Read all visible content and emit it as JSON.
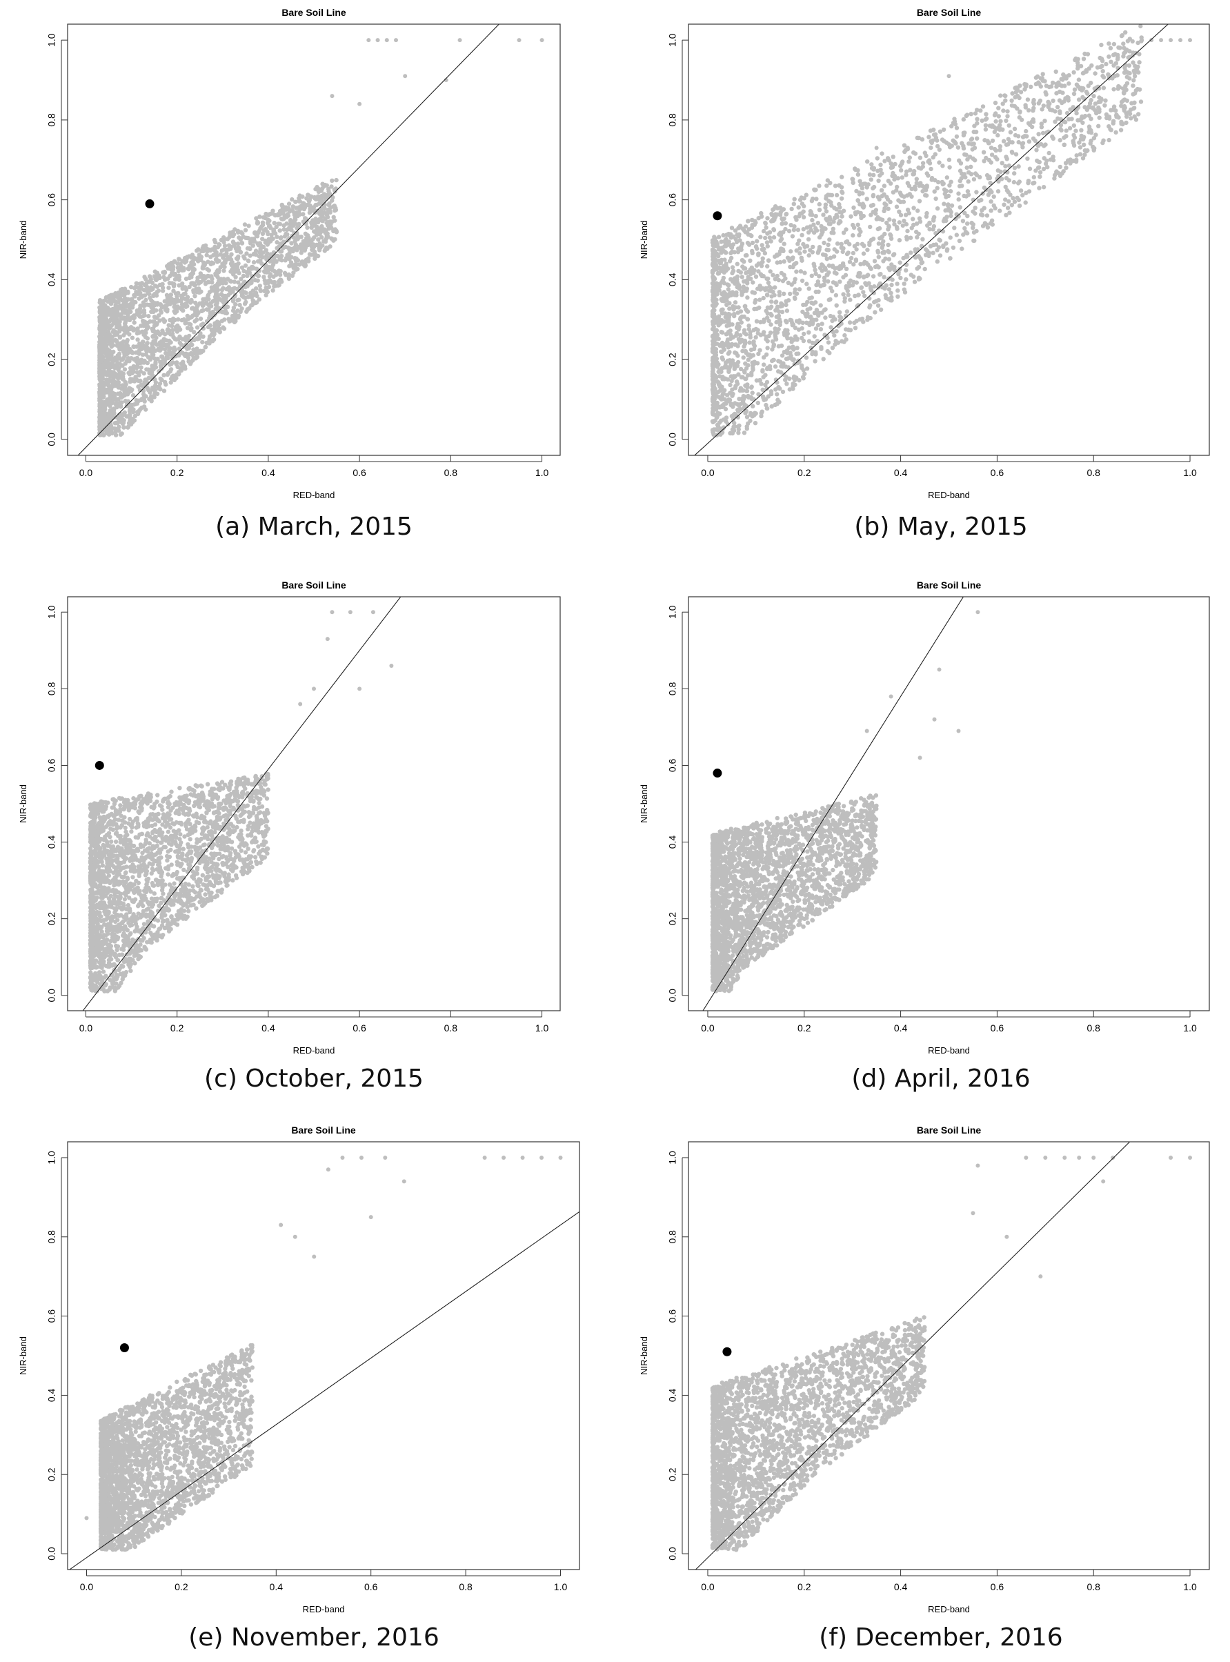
{
  "chart_data": [
    {
      "type": "scatter",
      "title": "Bare Soil Line",
      "xlabel": "RED-band",
      "ylabel": "NIR-band",
      "caption": "(a) March, 2015",
      "xlim": [
        0,
        1
      ],
      "ylim": [
        0,
        1
      ],
      "xticks": [
        "0.0",
        "0.2",
        "0.4",
        "0.6",
        "0.8",
        "1.0"
      ],
      "yticks": [
        "0.0",
        "0.2",
        "0.4",
        "0.6",
        "0.8",
        "1.0"
      ],
      "point_color": "#bebebe",
      "highlight_point": {
        "x": 0.14,
        "y": 0.59
      },
      "soil_line": {
        "slope": 1.17,
        "intercept": -0.02
      },
      "cloud": {
        "x_range": [
          0.03,
          0.55
        ],
        "y_low_at_x0": 0.0,
        "y_high_at_x0": 0.33,
        "y_high_slope": 0.6
      },
      "outliers": [
        {
          "x": 0.62,
          "y": 1.0
        },
        {
          "x": 0.64,
          "y": 1.0
        },
        {
          "x": 0.66,
          "y": 1.0
        },
        {
          "x": 0.68,
          "y": 1.0
        },
        {
          "x": 0.95,
          "y": 1.0
        },
        {
          "x": 1.0,
          "y": 1.0
        },
        {
          "x": 0.82,
          "y": 1.0
        },
        {
          "x": 0.79,
          "y": 0.9
        },
        {
          "x": 0.54,
          "y": 0.86
        },
        {
          "x": 0.6,
          "y": 0.84
        },
        {
          "x": 0.7,
          "y": 0.91
        }
      ]
    },
    {
      "type": "scatter",
      "title": "Bare Soil Line",
      "xlabel": "RED-band",
      "ylabel": "NIR-band",
      "caption": "(b) May, 2015",
      "xlim": [
        0,
        1
      ],
      "ylim": [
        0,
        1
      ],
      "xticks": [
        "0.0",
        "0.2",
        "0.4",
        "0.6",
        "0.8",
        "1.0"
      ],
      "yticks": [
        "0.0",
        "0.2",
        "0.4",
        "0.6",
        "0.8",
        "1.0"
      ],
      "point_color": "#bebebe",
      "highlight_point": {
        "x": 0.02,
        "y": 0.56
      },
      "soil_line": {
        "slope": 1.1,
        "intercept": -0.01
      },
      "cloud": {
        "x_range": [
          0.01,
          0.9
        ],
        "y_low_at_x0": 0.0,
        "y_high_at_x0": 0.5,
        "y_high_slope": 0.6
      },
      "outliers": [
        {
          "x": 0.9,
          "y": 1.0
        },
        {
          "x": 0.92,
          "y": 1.0
        },
        {
          "x": 0.94,
          "y": 1.0
        },
        {
          "x": 0.96,
          "y": 1.0
        },
        {
          "x": 0.98,
          "y": 1.0
        },
        {
          "x": 1.0,
          "y": 1.0
        },
        {
          "x": 0.5,
          "y": 0.91
        },
        {
          "x": 0.35,
          "y": 0.73
        }
      ]
    },
    {
      "type": "scatter",
      "title": "Bare Soil Line",
      "xlabel": "RED-band",
      "ylabel": "NIR-band",
      "caption": "(c) October, 2015",
      "xlim": [
        0,
        1
      ],
      "ylim": [
        0,
        1
      ],
      "xticks": [
        "0.0",
        "0.2",
        "0.4",
        "0.6",
        "0.8",
        "1.0"
      ],
      "yticks": [
        "0.0",
        "0.2",
        "0.4",
        "0.6",
        "0.8",
        "1.0"
      ],
      "point_color": "#bebebe",
      "highlight_point": {
        "x": 0.03,
        "y": 0.6
      },
      "soil_line": {
        "slope": 1.55,
        "intercept": -0.03
      },
      "cloud": {
        "x_range": [
          0.01,
          0.4
        ],
        "y_low_at_x0": 0.0,
        "y_high_at_x0": 0.5,
        "y_high_slope": 0.2
      },
      "outliers": [
        {
          "x": 0.54,
          "y": 1.0
        },
        {
          "x": 0.58,
          "y": 1.0
        },
        {
          "x": 0.63,
          "y": 1.0
        },
        {
          "x": 0.53,
          "y": 0.93
        },
        {
          "x": 0.67,
          "y": 0.86
        },
        {
          "x": 0.5,
          "y": 0.8
        },
        {
          "x": 0.47,
          "y": 0.76
        },
        {
          "x": 0.6,
          "y": 0.8
        }
      ]
    },
    {
      "type": "scatter",
      "title": "Bare Soil Line",
      "xlabel": "RED-band",
      "ylabel": "NIR-band",
      "caption": "(d) April, 2016",
      "xlim": [
        0,
        1
      ],
      "ylim": [
        0,
        1
      ],
      "xticks": [
        "0.0",
        "0.2",
        "0.4",
        "0.6",
        "0.8",
        "1.0"
      ],
      "yticks": [
        "0.0",
        "0.2",
        "0.4",
        "0.6",
        "0.8",
        "1.0"
      ],
      "point_color": "#bebebe",
      "highlight_point": {
        "x": 0.02,
        "y": 0.58
      },
      "soil_line": {
        "slope": 2.0,
        "intercept": -0.02
      },
      "cloud": {
        "x_range": [
          0.01,
          0.35
        ],
        "y_low_at_x0": 0.0,
        "y_high_at_x0": 0.42,
        "y_high_slope": 0.3
      },
      "outliers": [
        {
          "x": 0.56,
          "y": 1.0
        },
        {
          "x": 0.48,
          "y": 0.85
        },
        {
          "x": 0.38,
          "y": 0.78
        },
        {
          "x": 0.47,
          "y": 0.72
        },
        {
          "x": 0.52,
          "y": 0.69
        },
        {
          "x": 0.33,
          "y": 0.69
        },
        {
          "x": 0.44,
          "y": 0.62
        }
      ]
    },
    {
      "type": "scatter",
      "title": "Bare Soil Line",
      "xlabel": "RED-band",
      "ylabel": "NIR-band",
      "caption": "(e) November, 2016",
      "xlim": [
        0,
        1
      ],
      "ylim": [
        0,
        1
      ],
      "xticks": [
        "0.0",
        "0.2",
        "0.4",
        "0.6",
        "0.8",
        "1.0"
      ],
      "yticks": [
        "0.0",
        "0.2",
        "0.4",
        "0.6",
        "0.8",
        "1.0"
      ],
      "point_color": "#bebebe",
      "highlight_point": {
        "x": 0.08,
        "y": 0.52
      },
      "soil_line": {
        "slope": 0.84,
        "intercept": -0.01
      },
      "cloud": {
        "x_range": [
          0.03,
          0.35
        ],
        "y_low_at_x0": 0.0,
        "y_high_at_x0": 0.32,
        "y_high_slope": 0.6
      },
      "outliers": [
        {
          "x": 0.54,
          "y": 1.0
        },
        {
          "x": 0.58,
          "y": 1.0
        },
        {
          "x": 0.63,
          "y": 1.0
        },
        {
          "x": 0.84,
          "y": 1.0
        },
        {
          "x": 0.88,
          "y": 1.0
        },
        {
          "x": 0.92,
          "y": 1.0
        },
        {
          "x": 0.96,
          "y": 1.0
        },
        {
          "x": 1.0,
          "y": 1.0
        },
        {
          "x": 0.51,
          "y": 0.97
        },
        {
          "x": 0.67,
          "y": 0.94
        },
        {
          "x": 0.41,
          "y": 0.83
        },
        {
          "x": 0.44,
          "y": 0.8
        },
        {
          "x": 0.48,
          "y": 0.75
        },
        {
          "x": 0.6,
          "y": 0.85
        },
        {
          "x": 0.0,
          "y": 0.09
        }
      ]
    },
    {
      "type": "scatter",
      "title": "Bare Soil Line",
      "xlabel": "RED-band",
      "ylabel": "NIR-band",
      "caption": "(f) December, 2016",
      "xlim": [
        0,
        1
      ],
      "ylim": [
        0,
        1
      ],
      "xticks": [
        "0.0",
        "0.2",
        "0.4",
        "0.6",
        "0.8",
        "1.0"
      ],
      "yticks": [
        "0.0",
        "0.2",
        "0.4",
        "0.6",
        "0.8",
        "1.0"
      ],
      "point_color": "#bebebe",
      "highlight_point": {
        "x": 0.04,
        "y": 0.51
      },
      "soil_line": {
        "slope": 1.2,
        "intercept": -0.01
      },
      "cloud": {
        "x_range": [
          0.01,
          0.45
        ],
        "y_low_at_x0": 0.0,
        "y_high_at_x0": 0.42,
        "y_high_slope": 0.4
      },
      "outliers": [
        {
          "x": 0.66,
          "y": 1.0
        },
        {
          "x": 0.7,
          "y": 1.0
        },
        {
          "x": 0.74,
          "y": 1.0
        },
        {
          "x": 0.77,
          "y": 1.0
        },
        {
          "x": 0.8,
          "y": 1.0
        },
        {
          "x": 0.84,
          "y": 1.0
        },
        {
          "x": 0.96,
          "y": 1.0
        },
        {
          "x": 1.0,
          "y": 1.0
        },
        {
          "x": 0.56,
          "y": 0.98
        },
        {
          "x": 0.82,
          "y": 0.94
        },
        {
          "x": 0.62,
          "y": 0.8
        },
        {
          "x": 0.55,
          "y": 0.86
        },
        {
          "x": 0.69,
          "y": 0.7
        }
      ]
    }
  ]
}
